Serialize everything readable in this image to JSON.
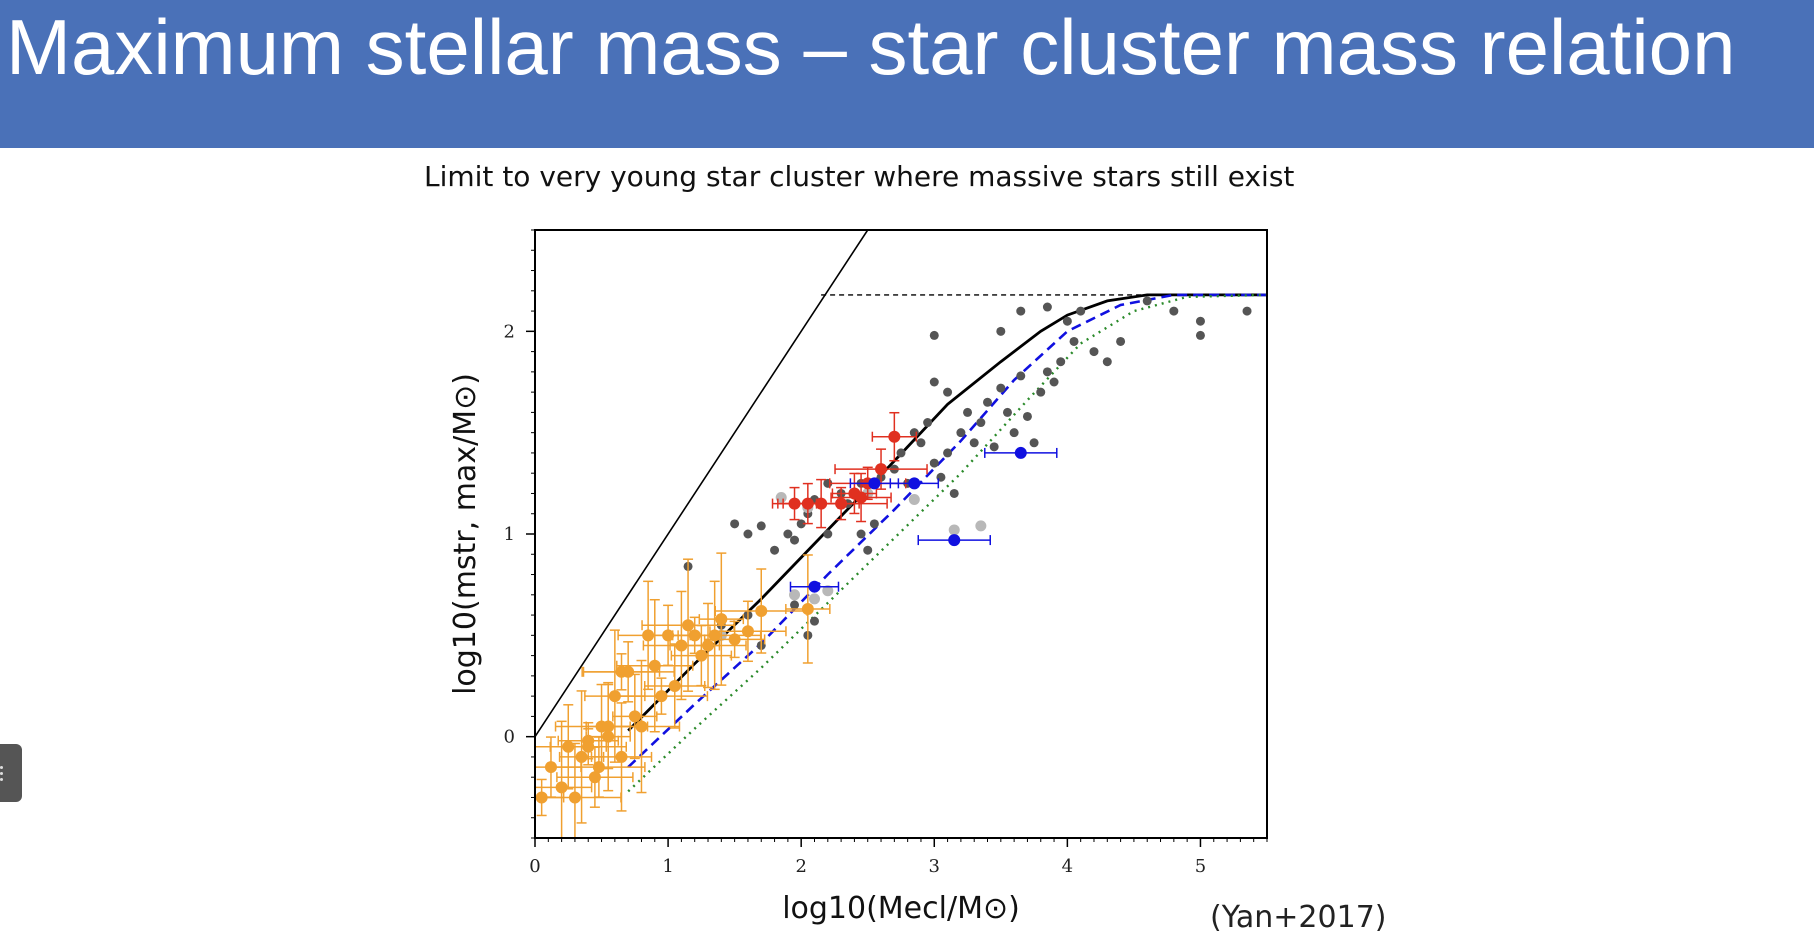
{
  "page": {
    "title": "Maximum stellar mass – star cluster mass relation",
    "subtitle": "Limit to very young star cluster where massive stars still exist",
    "citation": "(Yan+2017)"
  },
  "colors": {
    "title_bar": "#4a71b8",
    "orange": "#f0a030",
    "red": "#e03020",
    "blue": "#1010e0",
    "dark_gray": "#555555",
    "light_gray": "#b8b8b8",
    "green": "#2a8a2a"
  },
  "chart_data": {
    "type": "scatter",
    "xlabel": "log10(Mecl/M⊙)",
    "ylabel": "log10(mstr, max/M⊙)",
    "xlim": [
      0,
      5.5
    ],
    "ylim": [
      -0.5,
      2.5
    ],
    "xticks": [
      "0",
      "1",
      "2",
      "3",
      "4",
      "5"
    ],
    "yticks": [
      "0",
      "1",
      "2"
    ],
    "grid": false,
    "lines": [
      {
        "name": "",
        "style": "solid-thin",
        "color": "#000000",
        "points": [
          [
            0,
            0
          ],
          [
            2.5,
            2.5
          ]
        ]
      },
      {
        "name": "",
        "style": "dashed",
        "color": "#000000",
        "points": [
          [
            2.15,
            2.18
          ],
          [
            5.5,
            2.18
          ]
        ]
      },
      {
        "name": "",
        "style": "solid",
        "color": "#000000",
        "points": [
          [
            0.7,
            0.03
          ],
          [
            1.2,
            0.36
          ],
          [
            1.7,
            0.68
          ],
          [
            2.2,
            1.02
          ],
          [
            2.7,
            1.36
          ],
          [
            3.1,
            1.64
          ],
          [
            3.5,
            1.85
          ],
          [
            3.8,
            2.0
          ],
          [
            4.0,
            2.08
          ],
          [
            4.3,
            2.15
          ],
          [
            4.6,
            2.18
          ],
          [
            5.5,
            2.18
          ]
        ]
      },
      {
        "name": "",
        "style": "dashed",
        "color": "#1010e0",
        "points": [
          [
            0.7,
            -0.15
          ],
          [
            1.2,
            0.16
          ],
          [
            1.7,
            0.46
          ],
          [
            2.2,
            0.8
          ],
          [
            2.7,
            1.12
          ],
          [
            3.2,
            1.46
          ],
          [
            3.6,
            1.76
          ],
          [
            4.0,
            2.0
          ],
          [
            4.4,
            2.13
          ],
          [
            4.8,
            2.18
          ],
          [
            5.5,
            2.18
          ]
        ]
      },
      {
        "name": "",
        "style": "dotted",
        "color": "#2a8a2a",
        "points": [
          [
            0.7,
            -0.27
          ],
          [
            1.2,
            0.04
          ],
          [
            1.7,
            0.34
          ],
          [
            2.2,
            0.66
          ],
          [
            2.7,
            0.98
          ],
          [
            3.2,
            1.3
          ],
          [
            3.7,
            1.66
          ],
          [
            4.1,
            1.94
          ],
          [
            4.5,
            2.1
          ],
          [
            4.9,
            2.17
          ],
          [
            5.5,
            2.18
          ]
        ]
      }
    ],
    "series": [
      {
        "name": "",
        "color": "#555555",
        "marker": "dot",
        "points": [
          [
            1.15,
            0.84
          ],
          [
            1.5,
            1.05
          ],
          [
            1.6,
            1.0
          ],
          [
            1.7,
            1.04
          ],
          [
            1.8,
            0.92
          ],
          [
            1.9,
            1.0
          ],
          [
            1.95,
            0.97
          ],
          [
            2.0,
            1.05
          ],
          [
            2.05,
            1.1
          ],
          [
            2.1,
            1.17
          ],
          [
            2.2,
            1.25
          ],
          [
            2.3,
            1.2
          ],
          [
            2.35,
            1.15
          ],
          [
            2.45,
            1.25
          ],
          [
            2.55,
            1.05
          ],
          [
            2.6,
            1.28
          ],
          [
            2.7,
            1.32
          ],
          [
            2.75,
            1.4
          ],
          [
            2.8,
            1.25
          ],
          [
            2.85,
            1.5
          ],
          [
            2.9,
            1.45
          ],
          [
            2.95,
            1.55
          ],
          [
            3.0,
            1.35
          ],
          [
            3.05,
            1.28
          ],
          [
            3.1,
            1.4
          ],
          [
            3.15,
            1.2
          ],
          [
            3.2,
            1.5
          ],
          [
            3.25,
            1.6
          ],
          [
            3.3,
            1.45
          ],
          [
            3.35,
            1.55
          ],
          [
            3.4,
            1.65
          ],
          [
            3.45,
            1.43
          ],
          [
            3.5,
            1.72
          ],
          [
            3.55,
            1.6
          ],
          [
            3.6,
            1.5
          ],
          [
            3.65,
            1.78
          ],
          [
            3.7,
            1.58
          ],
          [
            3.75,
            1.45
          ],
          [
            3.8,
            1.7
          ],
          [
            3.85,
            1.8
          ],
          [
            3.9,
            1.75
          ],
          [
            3.95,
            1.85
          ],
          [
            4.0,
            2.05
          ],
          [
            4.05,
            1.95
          ],
          [
            4.1,
            2.1
          ],
          [
            4.2,
            1.9
          ],
          [
            4.3,
            1.85
          ],
          [
            4.4,
            1.95
          ],
          [
            4.6,
            2.15
          ],
          [
            4.8,
            2.1
          ],
          [
            5.0,
            2.05
          ],
          [
            5.0,
            1.98
          ],
          [
            5.35,
            2.1
          ],
          [
            3.0,
            1.98
          ],
          [
            2.5,
            0.92
          ],
          [
            2.45,
            1.0
          ],
          [
            3.1,
            1.7
          ],
          [
            3.0,
            1.75
          ],
          [
            2.2,
            1.0
          ],
          [
            1.6,
            0.6
          ],
          [
            1.4,
            0.55
          ],
          [
            1.7,
            0.45
          ],
          [
            1.95,
            0.65
          ],
          [
            2.1,
            0.57
          ],
          [
            2.05,
            0.5
          ],
          [
            3.5,
            2.0
          ],
          [
            3.65,
            2.1
          ],
          [
            3.85,
            2.12
          ]
        ]
      },
      {
        "name": "",
        "color": "#b8b8b8",
        "marker": "dot",
        "points": [
          [
            1.85,
            1.18
          ],
          [
            2.05,
            1.13
          ],
          [
            2.3,
            1.15
          ],
          [
            2.5,
            1.2
          ],
          [
            2.85,
            1.17
          ],
          [
            3.35,
            1.04
          ],
          [
            3.15,
            1.02
          ],
          [
            1.95,
            0.7
          ],
          [
            2.1,
            0.68
          ],
          [
            2.2,
            0.72
          ],
          [
            1.4,
            0.5
          ],
          [
            1.7,
            0.62
          ]
        ]
      },
      {
        "name": "",
        "color": "#f0a030",
        "marker": "dot-errorbar",
        "points": [
          [
            0.05,
            -0.3
          ],
          [
            0.12,
            -0.15
          ],
          [
            0.25,
            -0.05
          ],
          [
            0.3,
            -0.3
          ],
          [
            0.35,
            -0.1
          ],
          [
            0.4,
            -0.02
          ],
          [
            0.45,
            -0.2
          ],
          [
            0.5,
            0.05
          ],
          [
            0.55,
            0.0
          ],
          [
            0.6,
            0.2
          ],
          [
            0.65,
            0.32
          ],
          [
            0.7,
            0.32
          ],
          [
            0.75,
            0.1
          ],
          [
            0.85,
            0.5
          ],
          [
            0.9,
            0.35
          ],
          [
            0.95,
            0.2
          ],
          [
            1.0,
            0.5
          ],
          [
            1.05,
            0.25
          ],
          [
            1.1,
            0.45
          ],
          [
            1.15,
            0.55
          ],
          [
            1.2,
            0.5
          ],
          [
            1.25,
            0.4
          ],
          [
            1.3,
            0.45
          ],
          [
            1.35,
            0.5
          ],
          [
            1.4,
            0.58
          ],
          [
            1.5,
            0.48
          ],
          [
            1.6,
            0.52
          ],
          [
            1.7,
            0.62
          ],
          [
            2.05,
            0.63
          ],
          [
            0.2,
            -0.25
          ],
          [
            0.4,
            -0.05
          ],
          [
            0.48,
            -0.15
          ],
          [
            0.55,
            0.05
          ],
          [
            0.65,
            -0.1
          ],
          [
            0.8,
            0.05
          ]
        ]
      },
      {
        "name": "",
        "color": "#e03020",
        "marker": "dot-errorbar",
        "points": [
          [
            1.95,
            1.15
          ],
          [
            2.05,
            1.15
          ],
          [
            2.15,
            1.15
          ],
          [
            2.3,
            1.15
          ],
          [
            2.4,
            1.2
          ],
          [
            2.45,
            1.18
          ],
          [
            2.5,
            1.25
          ],
          [
            2.6,
            1.32
          ],
          [
            2.7,
            1.48
          ]
        ]
      },
      {
        "name": "",
        "color": "#1010e0",
        "marker": "dot-errorbar",
        "points": [
          [
            2.1,
            0.74
          ],
          [
            2.55,
            1.25
          ],
          [
            2.85,
            1.25
          ],
          [
            3.15,
            0.97
          ],
          [
            3.65,
            1.4
          ]
        ]
      }
    ]
  }
}
